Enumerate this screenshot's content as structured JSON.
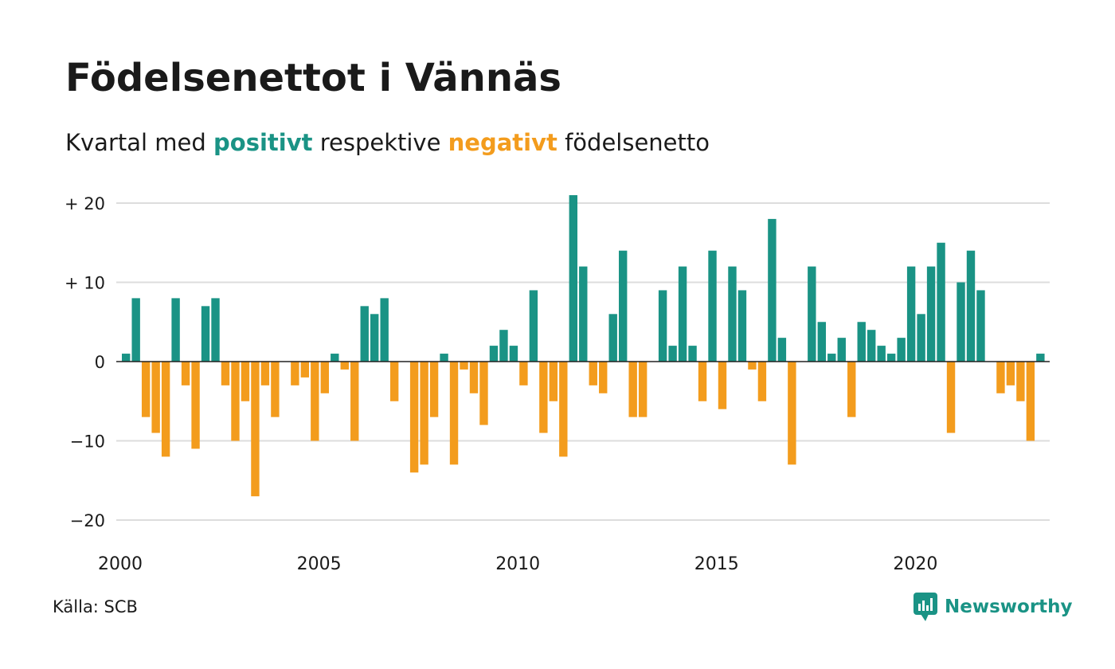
{
  "title": "Födelsenettot i Vännäs",
  "subtitle": {
    "prefix": "Kvartal med",
    "positive": "positivt",
    "middle": "respektive",
    "negative": "negativt",
    "suffix": "födelsenetto"
  },
  "colors": {
    "positive": "#1a9385",
    "negative": "#f39c1d",
    "gridline": "#dddddd",
    "zero_line": "#222222",
    "brand": "#1a9385"
  },
  "source": "Källa: SCB",
  "brand": {
    "name": "Newsworthy",
    "icon": "newsworthy-logo-icon"
  },
  "chart_data": {
    "type": "bar",
    "x_start": "2000 Q1",
    "x_ticks": [
      "2000",
      "2005",
      "2010",
      "2015",
      "2020"
    ],
    "y_ticks": [
      "+ 20",
      "+ 10",
      "0",
      "−10",
      "−20"
    ],
    "y_tick_values": [
      20,
      10,
      0,
      -10,
      -20
    ],
    "ylim": [
      -23,
      21
    ],
    "grid": true,
    "values": [
      1,
      8,
      -7,
      -9,
      -12,
      8,
      -3,
      -11,
      7,
      8,
      -3,
      -10,
      -5,
      -17,
      -3,
      -7,
      0,
      -3,
      -2,
      -10,
      -4,
      1,
      -1,
      -10,
      7,
      6,
      8,
      -5,
      0,
      -14,
      -13,
      -7,
      1,
      -13,
      -1,
      -4,
      -8,
      2,
      4,
      2,
      -3,
      9,
      -9,
      -5,
      -12,
      21,
      12,
      -3,
      -4,
      6,
      14,
      -7,
      -7,
      0,
      9,
      2,
      12,
      2,
      -5,
      14,
      -6,
      12,
      9,
      -1,
      -5,
      18,
      3,
      -13,
      0,
      12,
      5,
      1,
      3,
      -7,
      5,
      4,
      2,
      1,
      3,
      12,
      6,
      12,
      15,
      -9,
      10,
      14,
      9,
      0,
      -4,
      -3,
      -5,
      -10,
      1
    ]
  }
}
